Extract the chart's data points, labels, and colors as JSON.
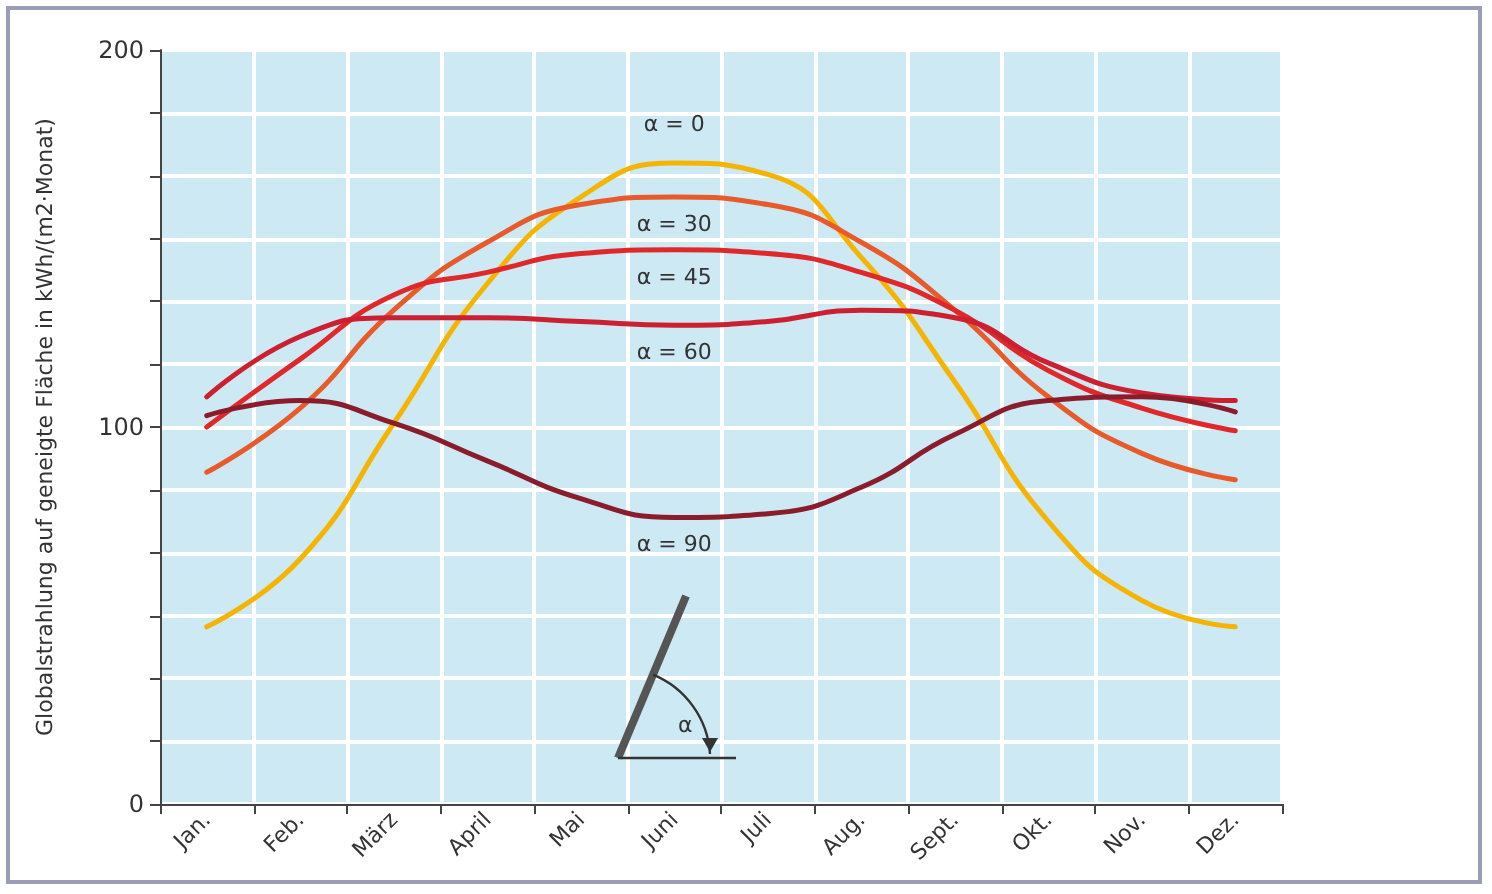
{
  "chart_data": {
    "type": "line",
    "ylabel": "Globalstrahlung auf geneigte Fläche in kWh/(m2·Monat)",
    "categories": [
      "Jan.",
      "Feb.",
      "März",
      "April",
      "Mai",
      "Juni",
      "Juli",
      "Aug.",
      "Sept.",
      "Okt.",
      "Nov.",
      "Dez."
    ],
    "series": [
      {
        "name": "α = 0",
        "color": "#f5b400",
        "values": [
          47,
          65,
          101,
          138,
          161,
          170,
          167,
          145,
          112,
          75,
          54,
          47
        ]
      },
      {
        "name": "α = 30",
        "color": "#e85a2a",
        "values": [
          88,
          105,
          131,
          149,
          159,
          161,
          159,
          149,
          131,
          108,
          93,
          86
        ]
      },
      {
        "name": "α = 45",
        "color": "#e0282a",
        "values": [
          100,
          118,
          135,
          141,
          146,
          147,
          146,
          141,
          131,
          115,
          105,
          99
        ]
      },
      {
        "name": "α = 60",
        "color": "#cc1f30",
        "values": [
          108,
          124,
          129,
          129,
          128,
          127,
          128,
          131,
          129,
          117,
          109,
          107
        ]
      },
      {
        "name": "α = 90",
        "color": "#8a1c2c",
        "values": [
          103,
          107,
          101,
          91,
          81,
          76,
          77,
          84,
          98,
          107,
          108,
          104
        ]
      }
    ],
    "ylim": [
      0,
      200
    ],
    "yticks": [
      0,
      {
        "value": 16.7,
        "label": null
      },
      {
        "value": 33.3,
        "label": null
      },
      {
        "value": 50,
        "label": null
      },
      {
        "value": 66.7,
        "label": null
      },
      {
        "value": 83.3,
        "label": null
      },
      100,
      {
        "value": 116.7,
        "label": null
      },
      {
        "value": 133.3,
        "label": null
      },
      {
        "value": 150,
        "label": null
      },
      {
        "value": 166.7,
        "label": null
      },
      {
        "value": 183.3,
        "label": null
      },
      200
    ],
    "grid": true,
    "legend": false,
    "marker": "none",
    "line_style": "solid",
    "annotations": [
      "α"
    ]
  }
}
